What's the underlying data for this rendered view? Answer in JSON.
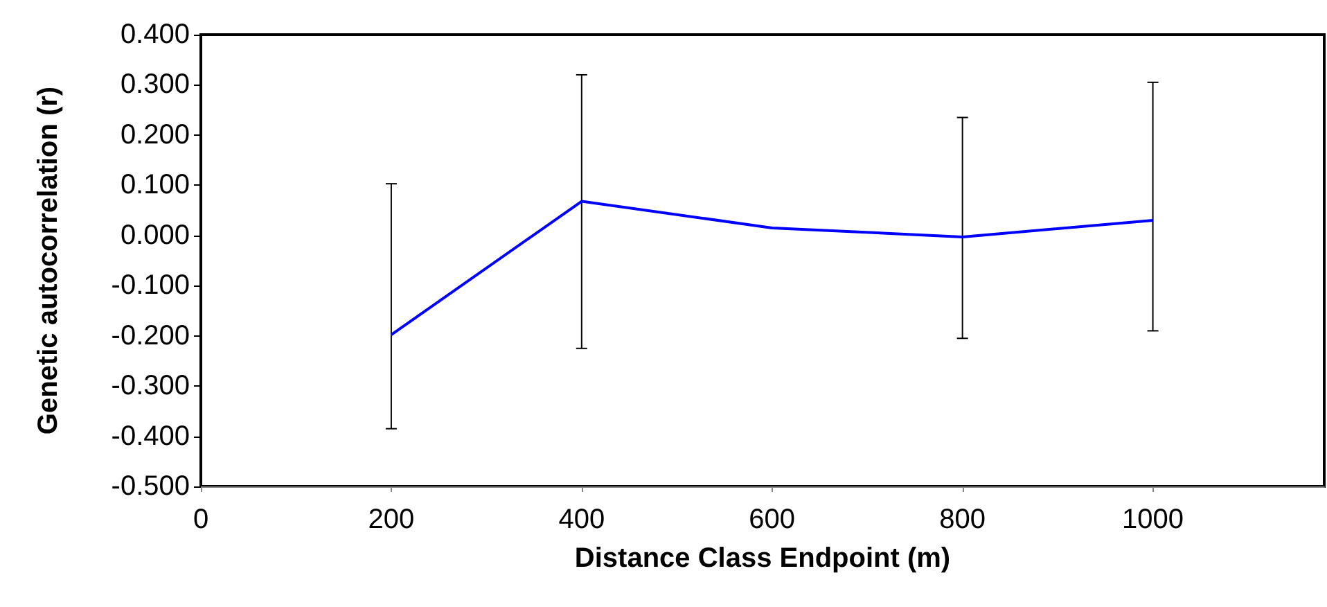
{
  "chart_data": {
    "type": "line",
    "xlabel": "Distance Class Endpoint (m)",
    "ylabel": "Genetic autocorrelation (r)",
    "x": [
      200,
      400,
      600,
      800,
      1000
    ],
    "series": [
      {
        "color": "#0000ff",
        "values": [
          -0.198,
          0.068,
          0.015,
          -0.003,
          0.03
        ],
        "errors": [
          [
            -0.385,
            0.103
          ],
          [
            -0.225,
            0.32
          ],
          null,
          [
            -0.205,
            0.235
          ],
          [
            -0.19,
            0.305
          ]
        ]
      }
    ],
    "xlim": [
      0,
      1180
    ],
    "xticks": [
      0,
      200,
      400,
      600,
      800,
      1000
    ],
    "ylim": [
      -0.5,
      0.4
    ],
    "yticks": [
      {
        "value": -0.5,
        "label": "-0.500"
      },
      {
        "value": -0.4,
        "label": "-0.400"
      },
      {
        "value": -0.3,
        "label": "-0.300"
      },
      {
        "value": -0.2,
        "label": "-0.200"
      },
      {
        "value": -0.1,
        "label": "-0.100"
      },
      {
        "value": 0,
        "label": "0.000"
      },
      {
        "value": 0.1,
        "label": "0.100"
      },
      {
        "value": 0.2,
        "label": "0.200"
      },
      {
        "value": 0.3,
        "label": "0.300"
      },
      {
        "value": 0.4,
        "label": "0.400"
      }
    ],
    "grid": false,
    "marker": "none",
    "line_style": "solid"
  }
}
